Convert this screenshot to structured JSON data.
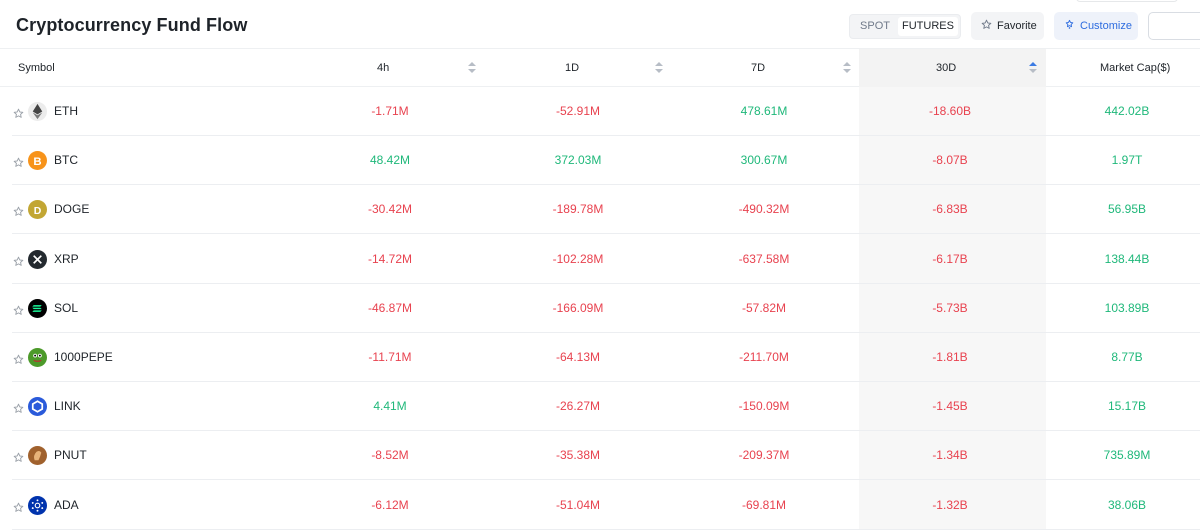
{
  "header": {
    "title": "Cryptocurrency Fund Flow",
    "tabs": [
      {
        "label": "SPOT",
        "active": false
      },
      {
        "label": "FUTURES",
        "active": true
      }
    ],
    "favorite_label": "Favorite",
    "customize_label": "Customize"
  },
  "table": {
    "columns": [
      "Symbol",
      "4h",
      "1D",
      "7D",
      "30D",
      "Market Cap($)"
    ],
    "sorted_column": "30D",
    "rows": [
      {
        "symbol": "ETH",
        "h4": "-1.71M",
        "d1": "-52.91M",
        "d7": "478.61M",
        "d30": "-18.60B",
        "mcap": "442.02B",
        "icon": "eth-icon",
        "color": "#ececec"
      },
      {
        "symbol": "BTC",
        "h4": "48.42M",
        "d1": "372.03M",
        "d7": "300.67M",
        "d30": "-8.07B",
        "mcap": "1.97T",
        "icon": "btc-icon",
        "color": "#f7931a"
      },
      {
        "symbol": "DOGE",
        "h4": "-30.42M",
        "d1": "-189.78M",
        "d7": "-490.32M",
        "d30": "-6.83B",
        "mcap": "56.95B",
        "icon": "doge-icon",
        "color": "#c2a633"
      },
      {
        "symbol": "XRP",
        "h4": "-14.72M",
        "d1": "-102.28M",
        "d7": "-637.58M",
        "d30": "-6.17B",
        "mcap": "138.44B",
        "icon": "xrp-icon",
        "color": "#23292f"
      },
      {
        "symbol": "SOL",
        "h4": "-46.87M",
        "d1": "-166.09M",
        "d7": "-57.82M",
        "d30": "-5.73B",
        "mcap": "103.89B",
        "icon": "sol-icon",
        "color": "#000000"
      },
      {
        "symbol": "1000PEPE",
        "h4": "-11.71M",
        "d1": "-64.13M",
        "d7": "-211.70M",
        "d30": "-1.81B",
        "mcap": "8.77B",
        "icon": "pepe-icon",
        "color": "#4c9a2a"
      },
      {
        "symbol": "LINK",
        "h4": "4.41M",
        "d1": "-26.27M",
        "d7": "-150.09M",
        "d30": "-1.45B",
        "mcap": "15.17B",
        "icon": "link-icon",
        "color": "#2a5ada"
      },
      {
        "symbol": "PNUT",
        "h4": "-8.52M",
        "d1": "-35.38M",
        "d7": "-209.37M",
        "d30": "-1.34B",
        "mcap": "735.89M",
        "icon": "pnut-icon",
        "color": "#a0612d"
      },
      {
        "symbol": "ADA",
        "h4": "-6.12M",
        "d1": "-51.04M",
        "d7": "-69.81M",
        "d30": "-1.32B",
        "mcap": "38.06B",
        "icon": "ada-icon",
        "color": "#0033ad"
      }
    ]
  },
  "colors": {
    "positive": "#1fb87a",
    "negative": "#e8424f",
    "accent": "#2d6cdf"
  }
}
